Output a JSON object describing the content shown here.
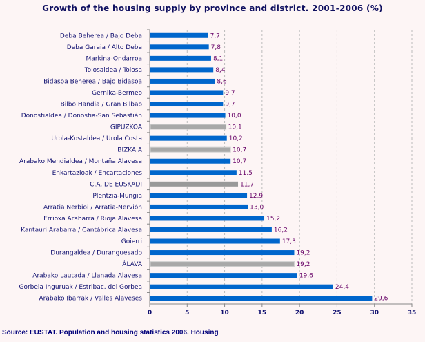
{
  "chart_data": {
    "type": "bar",
    "orientation": "horizontal",
    "title": "Growth of the housing supply by province and district. 2001-2006 (%)",
    "categories": [
      "Deba Beherea  /  Bajo Deba",
      "Deba Garaia  /  Alto Deba",
      "Markina-Ondarroa",
      "Tolosaldea  /  Tolosa",
      "Bidasoa Beherea  /  Bajo Bidasoa",
      "Gernika-Bermeo",
      "Bilbo Handia  /  Gran Bilbao",
      "Donostialdea  /  Donostia-San Sebastián",
      "GIPUZKOA",
      "Urola-Kostaldea  /  Urola Costa",
      "BIZKAIA",
      "Arabako Mendialdea  /  Montaña Alavesa",
      "Enkartazioak  /  Encartaciones",
      "C.A. DE EUSKADI",
      "Plentzia-Mungia",
      "Arratia Nerbioi  /  Arratia-Nervión",
      "Errioxa Arabarra  /  Rioja Alavesa",
      "Kantauri Arabarra  /  Cantábrica Alavesa",
      "Goierri",
      "Durangaldea  /  Duranguesado",
      "ÁLAVA",
      "Arabako Lautada  /  Llanada Alavesa",
      "Gorbeia Inguruak  /  Estribac. del Gorbea",
      "Arabako Ibarrak  /  Valles Alaveses"
    ],
    "values": [
      7.7,
      7.8,
      8.1,
      8.4,
      8.6,
      9.7,
      9.7,
      10.0,
      10.1,
      10.2,
      10.7,
      10.7,
      11.5,
      11.7,
      12.9,
      13.0,
      15.2,
      16.2,
      17.3,
      19.2,
      19.2,
      19.6,
      24.4,
      29.6
    ],
    "value_labels": [
      "7,7",
      "7,8",
      "8,1",
      "8,4",
      "8,6",
      "9,7",
      "9,7",
      "10,0",
      "10,1",
      "10,2",
      "10,7",
      "10,7",
      "11,5",
      "11,7",
      "12,9",
      "13,0",
      "15,2",
      "16,2",
      "17,3",
      "19,2",
      "19,2",
      "19,6",
      "24,4",
      "29,6"
    ],
    "bar_kind": [
      "district",
      "district",
      "district",
      "district",
      "district",
      "district",
      "district",
      "district",
      "province",
      "district",
      "province",
      "district",
      "district",
      "total",
      "district",
      "district",
      "district",
      "district",
      "district",
      "district",
      "province",
      "district",
      "district",
      "district"
    ],
    "xlim": [
      0,
      35
    ],
    "xticks": [
      "0",
      "5",
      "10",
      "15",
      "20",
      "25",
      "30",
      "35"
    ],
    "grid": "vertical dashed",
    "colors": {
      "district": "#0066cc",
      "province": "#a8a8a8",
      "total": "#999999",
      "value_label": "#660066",
      "text": "#101070",
      "background": "#fdf5f5"
    }
  },
  "source": "Source: EUSTAT. Population and housing statistics 2006. Housing"
}
